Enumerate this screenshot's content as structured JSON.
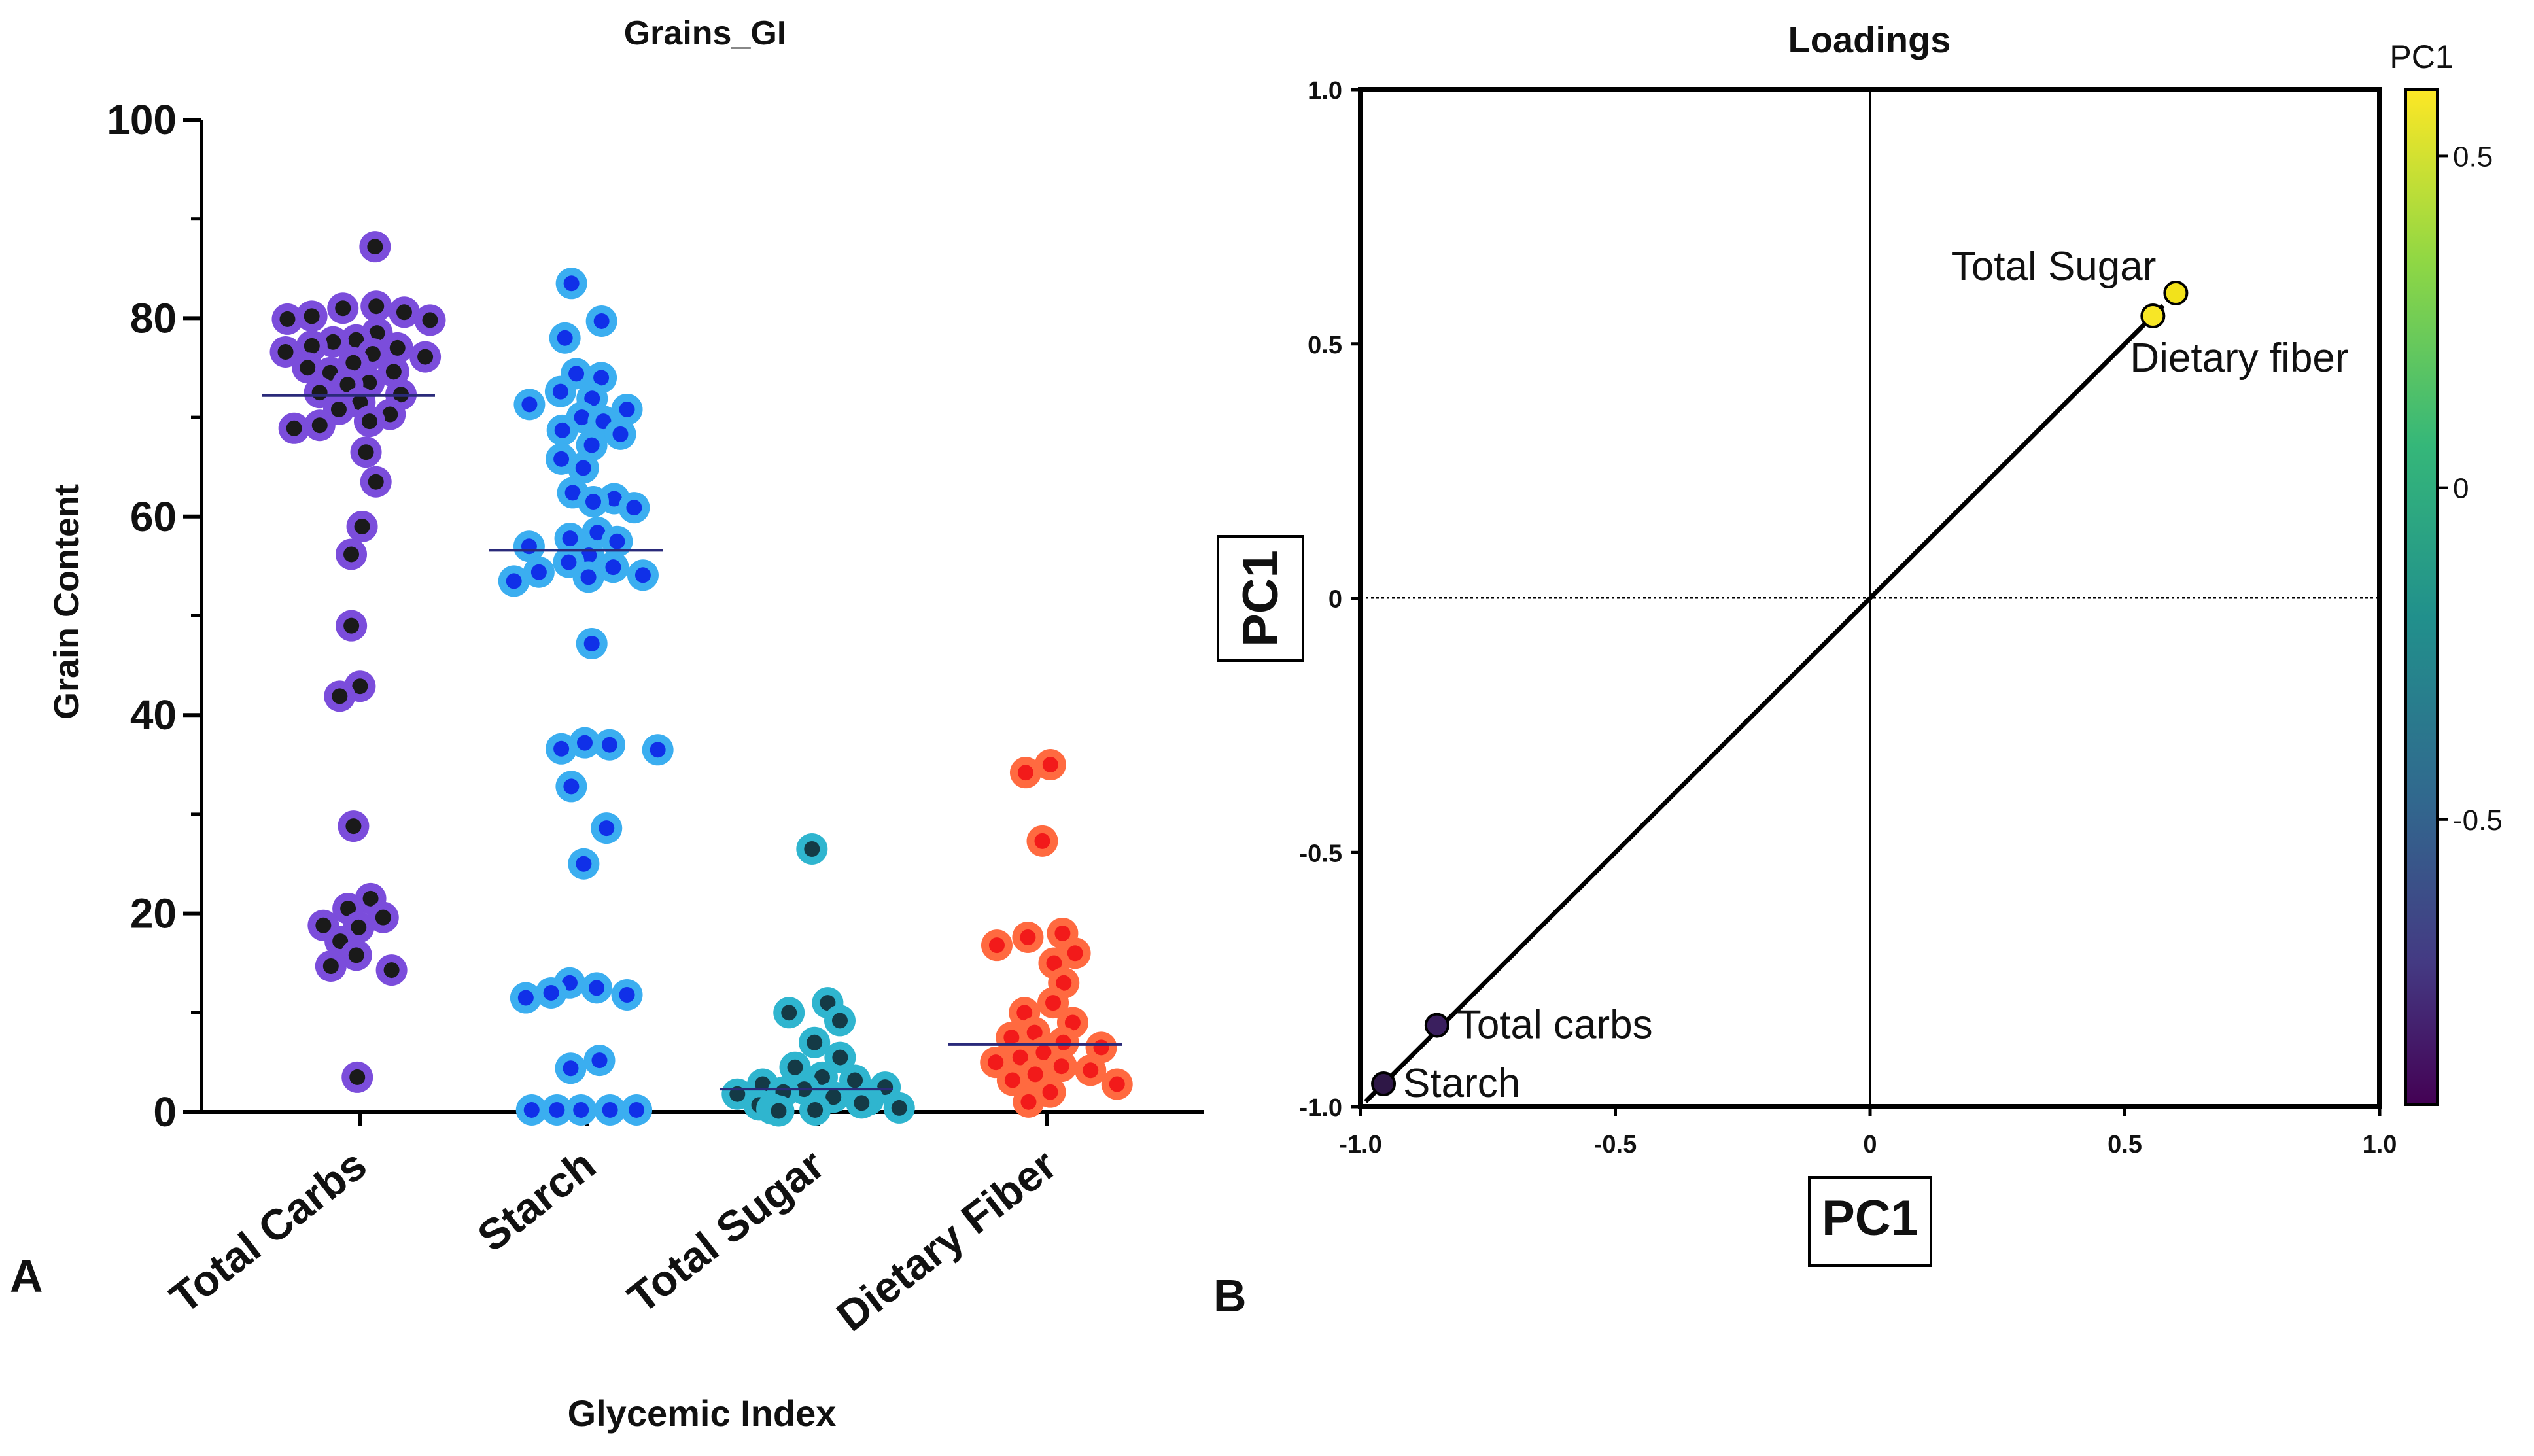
{
  "chart_data": [
    {
      "panel_label": "A",
      "type": "scatter",
      "subtype": "dot-strip",
      "title": "Grains_GI",
      "xlabel": "Glycemic Index",
      "ylabel": "Grain Content",
      "ylim": [
        0,
        100
      ],
      "yticks": [
        0,
        20,
        40,
        60,
        80,
        100
      ],
      "ytick_labels": [
        "0",
        "20",
        "40",
        "60",
        "80",
        "100"
      ],
      "categories": [
        "Total Carbs",
        "Starch",
        "Total Sugar",
        "Dietary Fiber"
      ],
      "series": [
        {
          "name": "Total Carbs",
          "mean": 72.2,
          "ring_color": "#7B4DDB",
          "center_color": "#1a1a1a",
          "values": [
            87.2,
            81.2,
            81.0,
            80.6,
            80.2,
            79.8,
            79.9,
            78.5,
            77.8,
            77.6,
            77.2,
            77.0,
            76.6,
            76.4,
            76.1,
            75.5,
            75.0,
            74.6,
            74.5,
            73.5,
            73.3,
            72.5,
            72.3,
            71.5,
            70.8,
            70.3,
            69.6,
            69.2,
            68.9,
            66.5,
            63.5,
            59.0,
            56.2,
            49.0,
            42.9,
            41.9,
            28.8,
            21.5,
            20.5,
            19.6,
            18.8,
            18.6,
            17.2,
            15.8,
            14.7,
            14.3,
            3.5
          ]
        },
        {
          "name": "Starch",
          "mean": 56.6,
          "ring_color": "#3BAEF0",
          "center_color": "#1030E8",
          "values": [
            83.5,
            79.7,
            78.0,
            74.4,
            74.0,
            72.6,
            71.9,
            71.3,
            70.8,
            70.0,
            69.6,
            68.7,
            68.3,
            67.2,
            65.8,
            64.9,
            62.4,
            61.8,
            61.5,
            60.9,
            58.4,
            57.8,
            57.5,
            57.0,
            56.1,
            55.4,
            54.9,
            54.4,
            54.1,
            53.9,
            53.5,
            47.2,
            37.2,
            37.0,
            36.6,
            36.5,
            32.8,
            28.6,
            25.0,
            13.0,
            12.5,
            12.0,
            11.8,
            11.5,
            5.2,
            4.4,
            0.2,
            0.2,
            0.2,
            0.2,
            0.2
          ]
        },
        {
          "name": "Total Sugar",
          "mean": 2.3,
          "ring_color": "#2FB5CF",
          "center_color": "#143A46",
          "values": [
            26.5,
            11.0,
            10.0,
            9.2,
            7.0,
            5.5,
            4.5,
            3.5,
            3.2,
            2.8,
            2.5,
            2.3,
            2.0,
            1.8,
            1.5,
            1.2,
            0.9,
            0.7,
            0.4,
            0.3,
            0.2,
            0.1
          ]
        },
        {
          "name": "Dietary Fiber",
          "mean": 6.8,
          "ring_color": "#FF6A40",
          "center_color": "#F21A1A",
          "values": [
            35.0,
            34.2,
            27.3,
            18.0,
            17.6,
            16.8,
            16.0,
            15.0,
            13.0,
            11.0,
            10.0,
            9.0,
            8.0,
            7.5,
            7.0,
            6.5,
            6.0,
            5.5,
            5.0,
            4.6,
            4.2,
            3.8,
            3.2,
            2.8,
            2.0,
            1.0
          ]
        }
      ]
    },
    {
      "panel_label": "B",
      "type": "scatter",
      "subtype": "pca-loadings",
      "title": "Loadings",
      "xlabel": "PC1",
      "ylabel": "PC1",
      "xlim": [
        -1.0,
        1.0
      ],
      "ylim": [
        -1.0,
        1.0
      ],
      "xticks": [
        -1.0,
        -0.5,
        0,
        0.5,
        1.0
      ],
      "xtick_labels": [
        "-1.0",
        "-0.5",
        "0",
        "0.5",
        "1.0"
      ],
      "yticks": [
        -1.0,
        -0.5,
        0,
        0.5,
        1.0
      ],
      "ytick_labels": [
        "-1.0",
        "-0.5",
        "0",
        "0.5",
        "1.0"
      ],
      "points": [
        {
          "label": "Total Sugar",
          "x": 0.6,
          "y": 0.6,
          "color": "#F2E21B",
          "label_position": "upper-left"
        },
        {
          "label": "Dietary fiber",
          "x": 0.555,
          "y": 0.555,
          "color": "#F7E626",
          "label_position": "lower-right"
        },
        {
          "label": "Total carbs",
          "x": -0.85,
          "y": -0.84,
          "color": "#3A1F5E",
          "label_position": "right"
        },
        {
          "label": "Starch",
          "x": -0.955,
          "y": -0.955,
          "color": "#2E1746",
          "label_position": "right"
        }
      ],
      "regression_line": {
        "x": [
          -0.99,
          0.575
        ],
        "y": [
          -0.99,
          0.575
        ]
      },
      "colorbar": {
        "title": "PC1",
        "range": [
          -0.93,
          0.6
        ],
        "ticks": [
          0.5,
          0,
          -0.5
        ],
        "tick_labels": [
          "0.5",
          "0",
          "-0.5"
        ],
        "colormap": [
          "#FDE725",
          "#8FD744",
          "#35B779",
          "#21908C",
          "#31688E",
          "#443A83",
          "#440154"
        ]
      }
    }
  ]
}
